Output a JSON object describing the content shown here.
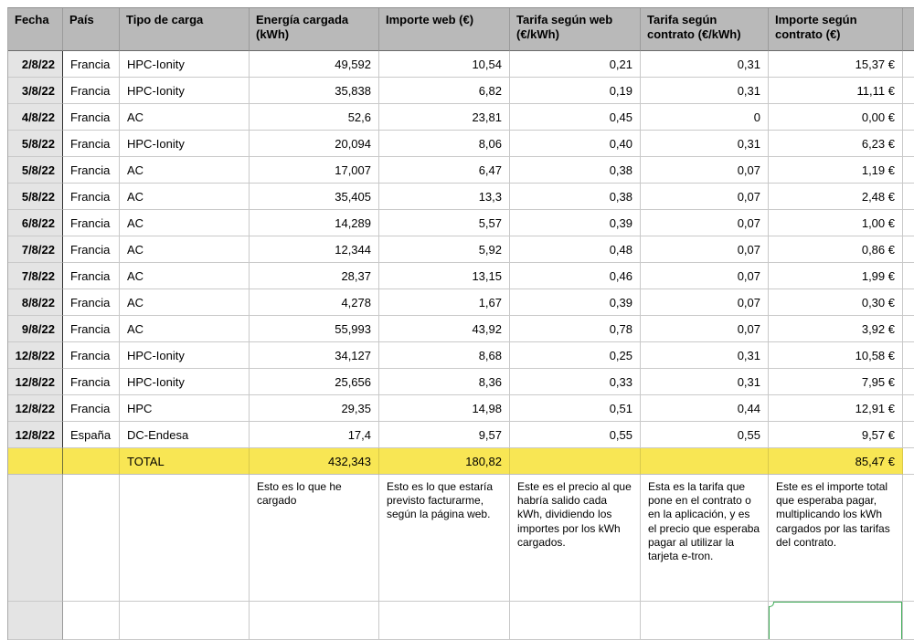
{
  "colors": {
    "header_bg": "#b9b9b9",
    "row_header_bg": "#e4e4e4",
    "total_row_bg": "#f8e654",
    "grid_line": "#c9c9c9",
    "selection_green": "#3fae58"
  },
  "table": {
    "columns": [
      {
        "key": "fecha",
        "label": "Fecha"
      },
      {
        "key": "pais",
        "label": "País"
      },
      {
        "key": "tipo",
        "label": "Tipo de carga"
      },
      {
        "key": "energia",
        "label": "Energía cargada (kWh)"
      },
      {
        "key": "importe_web",
        "label": "Importe web (€)"
      },
      {
        "key": "tarifa_web",
        "label": "Tarifa según web (€/kWh)"
      },
      {
        "key": "tarifa_contrato",
        "label": "Tarifa según contrato (€/kWh)"
      },
      {
        "key": "importe_contrato",
        "label": "Importe según contrato (€)"
      }
    ],
    "rows": [
      [
        "2/8/22",
        "Francia",
        "HPC-Ionity",
        "49,592",
        "10,54",
        "0,21",
        "0,31",
        "15,37 €"
      ],
      [
        "3/8/22",
        "Francia",
        "HPC-Ionity",
        "35,838",
        "6,82",
        "0,19",
        "0,31",
        "11,11 €"
      ],
      [
        "4/8/22",
        "Francia",
        "AC",
        "52,6",
        "23,81",
        "0,45",
        "0",
        "0,00 €"
      ],
      [
        "5/8/22",
        "Francia",
        "HPC-Ionity",
        "20,094",
        "8,06",
        "0,40",
        "0,31",
        "6,23 €"
      ],
      [
        "5/8/22",
        "Francia",
        "AC",
        "17,007",
        "6,47",
        "0,38",
        "0,07",
        "1,19 €"
      ],
      [
        "5/8/22",
        "Francia",
        "AC",
        "35,405",
        "13,3",
        "0,38",
        "0,07",
        "2,48 €"
      ],
      [
        "6/8/22",
        "Francia",
        "AC",
        "14,289",
        "5,57",
        "0,39",
        "0,07",
        "1,00 €"
      ],
      [
        "7/8/22",
        "Francia",
        "AC",
        "12,344",
        "5,92",
        "0,48",
        "0,07",
        "0,86 €"
      ],
      [
        "7/8/22",
        "Francia",
        "AC",
        "28,37",
        "13,15",
        "0,46",
        "0,07",
        "1,99 €"
      ],
      [
        "8/8/22",
        "Francia",
        "AC",
        "4,278",
        "1,67",
        "0,39",
        "0,07",
        "0,30 €"
      ],
      [
        "9/8/22",
        "Francia",
        "AC",
        "55,993",
        "43,92",
        "0,78",
        "0,07",
        "3,92 €"
      ],
      [
        "12/8/22",
        "Francia",
        "HPC-Ionity",
        "34,127",
        "8,68",
        "0,25",
        "0,31",
        "10,58 €"
      ],
      [
        "12/8/22",
        "Francia",
        "HPC-Ionity",
        "25,656",
        "8,36",
        "0,33",
        "0,31",
        "7,95 €"
      ],
      [
        "12/8/22",
        "Francia",
        "HPC",
        "29,35",
        "14,98",
        "0,51",
        "0,44",
        "12,91 €"
      ],
      [
        "12/8/22",
        "España",
        "DC-Endesa",
        "17,4",
        "9,57",
        "0,55",
        "0,55",
        "9,57 €"
      ]
    ],
    "total_row": [
      "",
      "",
      "TOTAL",
      "432,343",
      "180,82",
      "",
      "",
      "85,47 €"
    ],
    "notes_row": [
      "",
      "",
      "",
      "Esto es lo que he cargado",
      "Esto es lo que estaría previsto facturarme, según la página web.",
      "Este es el precio al que habría salido cada kWh, dividiendo los importes por los kWh cargados.",
      "Esta es la tarifa que pone en el contrato o en la aplicación, y es el precio que esperaba pagar al utilizar la tarjeta e-tron.",
      "Este es el importe total que esperaba pagar, multiplicando los kWh cargados por las tarifas del contrato."
    ],
    "selected_cell_value": ""
  }
}
